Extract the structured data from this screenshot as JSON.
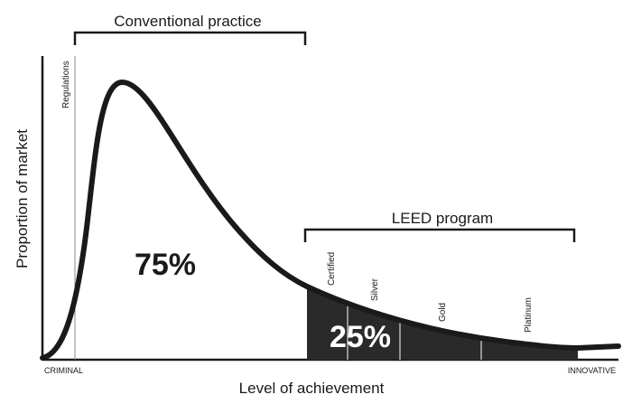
{
  "chart_data": {
    "type": "area",
    "title": "",
    "xlabel": "Level of achievement",
    "ylabel": "Proportion of market",
    "x_axis_endpoints": {
      "left": "CRIMINAL",
      "right": "INNOVATIVE"
    },
    "regions": [
      {
        "label": "75%",
        "fill": "#ffffff"
      },
      {
        "label": "25%",
        "fill": "#2a2a2a"
      }
    ],
    "brackets": [
      {
        "label": "Conventional practice"
      },
      {
        "label": "LEED program"
      }
    ],
    "thresholds": [
      {
        "label": "Regulations"
      },
      {
        "label": "Certified"
      },
      {
        "label": "Silver"
      },
      {
        "label": "Gold"
      },
      {
        "label": "Platinum"
      }
    ],
    "grid": false,
    "legend": "none",
    "colors": {
      "curve": "#1a1a1a",
      "shaded": "#2a2a2a",
      "text": "#1a1a1a",
      "threshold_line": "#888888"
    }
  }
}
